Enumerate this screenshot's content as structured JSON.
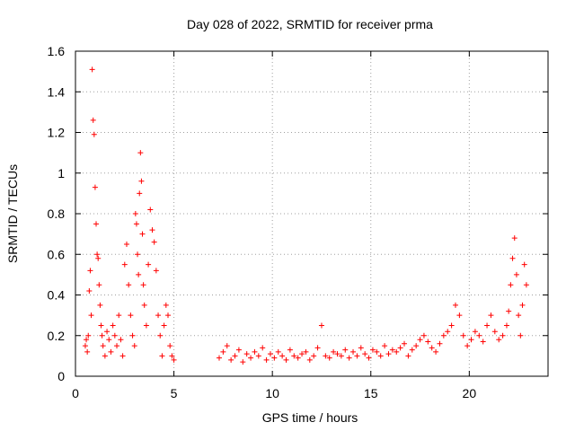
{
  "chart_data": {
    "type": "scatter",
    "title": "Day 028 of 2022, SRMTID for receiver prma",
    "xlabel": "GPS time / hours",
    "ylabel": "SRMTID / TECUs",
    "xlim": [
      0,
      24
    ],
    "ylim": [
      0,
      1.6
    ],
    "xticks": [
      0,
      5,
      10,
      15,
      20
    ],
    "xtick_labels": [
      "0",
      "5",
      "10",
      "15",
      "20"
    ],
    "yticks": [
      0,
      0.2,
      0.4,
      0.6,
      0.8,
      1,
      1.2,
      1.4,
      1.6
    ],
    "ytick_labels": [
      "0",
      "0.2",
      "0.4",
      "0.6",
      "0.8",
      "1",
      "1.2",
      "1.4",
      "1.6"
    ],
    "grid": true,
    "marker": "+",
    "color": "#ff0000",
    "series": [
      {
        "name": "SRMTID",
        "x": [
          0.5,
          0.55,
          0.6,
          0.65,
          0.7,
          0.75,
          0.8,
          0.85,
          0.9,
          0.95,
          1.0,
          1.05,
          1.1,
          1.15,
          1.2,
          1.25,
          1.3,
          1.35,
          1.4,
          1.5,
          1.6,
          1.7,
          1.8,
          1.9,
          2.0,
          2.1,
          2.2,
          2.3,
          2.4,
          2.5,
          2.6,
          2.7,
          2.8,
          2.9,
          3.0,
          3.05,
          3.1,
          3.15,
          3.2,
          3.25,
          3.3,
          3.35,
          3.4,
          3.45,
          3.5,
          3.6,
          3.7,
          3.8,
          3.9,
          4.0,
          4.1,
          4.2,
          4.3,
          4.4,
          4.5,
          4.6,
          4.7,
          4.8,
          4.9,
          5.0,
          7.3,
          7.5,
          7.7,
          7.9,
          8.1,
          8.3,
          8.5,
          8.7,
          8.9,
          9.1,
          9.3,
          9.5,
          9.7,
          9.9,
          10.1,
          10.3,
          10.5,
          10.7,
          10.9,
          11.1,
          11.3,
          11.5,
          11.7,
          11.9,
          12.1,
          12.3,
          12.5,
          12.7,
          12.9,
          13.1,
          13.3,
          13.5,
          13.7,
          13.9,
          14.1,
          14.3,
          14.5,
          14.7,
          14.9,
          15.1,
          15.3,
          15.5,
          15.7,
          15.9,
          16.1,
          16.3,
          16.5,
          16.7,
          16.9,
          17.1,
          17.3,
          17.5,
          17.7,
          17.9,
          18.1,
          18.3,
          18.5,
          18.7,
          18.9,
          19.1,
          19.3,
          19.5,
          19.7,
          19.9,
          20.1,
          20.3,
          20.5,
          20.7,
          20.9,
          21.1,
          21.3,
          21.5,
          21.7,
          21.9,
          22.0,
          22.1,
          22.2,
          22.3,
          22.4,
          22.5,
          22.6,
          22.7,
          22.8,
          22.9
        ],
        "y": [
          0.15,
          0.18,
          0.12,
          0.2,
          0.42,
          0.52,
          0.3,
          1.51,
          1.26,
          1.19,
          0.93,
          0.75,
          0.6,
          0.58,
          0.45,
          0.35,
          0.25,
          0.2,
          0.15,
          0.1,
          0.22,
          0.18,
          0.12,
          0.25,
          0.2,
          0.15,
          0.3,
          0.18,
          0.1,
          0.55,
          0.65,
          0.45,
          0.3,
          0.2,
          0.15,
          0.8,
          0.75,
          0.6,
          0.5,
          0.9,
          1.1,
          0.96,
          0.7,
          0.45,
          0.35,
          0.25,
          0.55,
          0.82,
          0.72,
          0.66,
          0.52,
          0.3,
          0.2,
          0.1,
          0.25,
          0.35,
          0.3,
          0.15,
          0.1,
          0.08,
          0.09,
          0.12,
          0.15,
          0.08,
          0.1,
          0.13,
          0.07,
          0.11,
          0.09,
          0.12,
          0.1,
          0.14,
          0.08,
          0.11,
          0.09,
          0.12,
          0.1,
          0.08,
          0.13,
          0.1,
          0.09,
          0.11,
          0.12,
          0.08,
          0.1,
          0.14,
          0.25,
          0.1,
          0.09,
          0.12,
          0.11,
          0.1,
          0.13,
          0.09,
          0.12,
          0.1,
          0.14,
          0.11,
          0.09,
          0.13,
          0.12,
          0.1,
          0.15,
          0.11,
          0.13,
          0.12,
          0.14,
          0.16,
          0.1,
          0.13,
          0.15,
          0.18,
          0.2,
          0.17,
          0.14,
          0.12,
          0.16,
          0.2,
          0.22,
          0.25,
          0.35,
          0.3,
          0.2,
          0.15,
          0.18,
          0.22,
          0.2,
          0.17,
          0.25,
          0.3,
          0.22,
          0.18,
          0.2,
          0.25,
          0.32,
          0.45,
          0.58,
          0.68,
          0.5,
          0.3,
          0.2,
          0.35,
          0.55,
          0.45
        ]
      }
    ]
  }
}
